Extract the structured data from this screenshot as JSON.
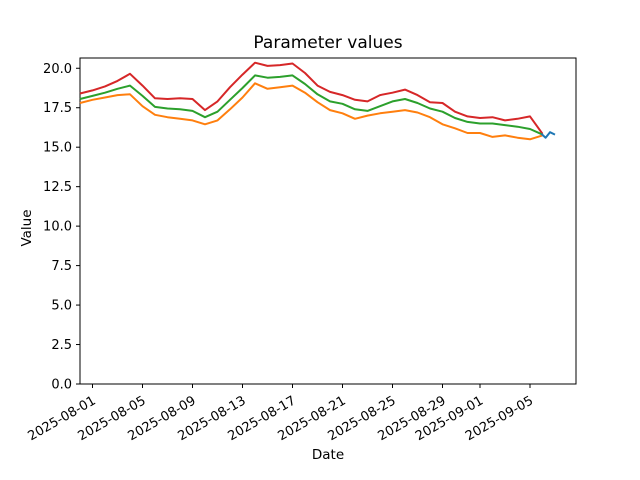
{
  "figure": {
    "title": "Parameter values",
    "xlabel": "Date",
    "ylabel": "Value",
    "background_color": "#ffffff",
    "spine_color": "#000000",
    "text_color": "#000000"
  },
  "chart_data": {
    "type": "line",
    "title": "Parameter values",
    "xlabel": "Date",
    "ylabel": "Value",
    "grid": false,
    "legend": null,
    "x_start": "2025-07-31",
    "xlim_days": [
      0,
      39.68
    ],
    "ylim": [
      0,
      20.65
    ],
    "y_ticks": [
      0.0,
      2.5,
      5.0,
      7.5,
      10.0,
      12.5,
      15.0,
      17.5,
      20.0
    ],
    "x_tick_dates": [
      "2025-08-01",
      "2025-08-05",
      "2025-08-09",
      "2025-08-13",
      "2025-08-17",
      "2025-08-21",
      "2025-08-25",
      "2025-08-29",
      "2025-09-01",
      "2025-09-05"
    ],
    "x_tick_rotation_deg": 30,
    "dates": [
      "2025-07-31",
      "2025-08-01",
      "2025-08-02",
      "2025-08-03",
      "2025-08-04",
      "2025-08-05",
      "2025-08-06",
      "2025-08-07",
      "2025-08-08",
      "2025-08-09",
      "2025-08-10",
      "2025-08-11",
      "2025-08-12",
      "2025-08-13",
      "2025-08-14",
      "2025-08-15",
      "2025-08-16",
      "2025-08-17",
      "2025-08-18",
      "2025-08-19",
      "2025-08-20",
      "2025-08-21",
      "2025-08-22",
      "2025-08-23",
      "2025-08-24",
      "2025-08-25",
      "2025-08-26",
      "2025-08-27",
      "2025-08-28",
      "2025-08-29",
      "2025-08-30",
      "2025-08-31",
      "2025-09-01",
      "2025-09-02",
      "2025-09-03",
      "2025-09-04",
      "2025-09-05",
      "2025-09-06"
    ],
    "series": [
      {
        "name": "series-red",
        "color": "#d62728",
        "values": [
          18.4,
          18.6,
          18.85,
          19.2,
          19.65,
          18.9,
          18.1,
          18.05,
          18.1,
          18.05,
          17.35,
          17.9,
          18.8,
          19.6,
          20.35,
          20.15,
          20.2,
          20.3,
          19.7,
          18.9,
          18.5,
          18.3,
          18.0,
          17.9,
          18.3,
          18.45,
          18.65,
          18.3,
          17.85,
          17.8,
          17.25,
          16.95,
          16.85,
          16.9,
          16.7,
          16.8,
          16.95,
          15.85
        ]
      },
      {
        "name": "series-green",
        "color": "#2ca02c",
        "values": [
          18.05,
          18.25,
          18.45,
          18.7,
          18.9,
          18.25,
          17.55,
          17.45,
          17.4,
          17.3,
          16.9,
          17.25,
          18.0,
          18.75,
          19.55,
          19.4,
          19.45,
          19.55,
          19.0,
          18.35,
          17.9,
          17.75,
          17.4,
          17.3,
          17.6,
          17.9,
          18.05,
          17.8,
          17.45,
          17.25,
          16.85,
          16.6,
          16.5,
          16.5,
          16.4,
          16.3,
          16.15,
          15.8
        ]
      },
      {
        "name": "series-orange",
        "color": "#ff7f0e",
        "values": [
          17.8,
          18.0,
          18.15,
          18.3,
          18.35,
          17.6,
          17.05,
          16.9,
          16.8,
          16.7,
          16.45,
          16.7,
          17.4,
          18.15,
          19.05,
          18.7,
          18.8,
          18.9,
          18.45,
          17.85,
          17.35,
          17.15,
          16.8,
          17.0,
          17.15,
          17.25,
          17.35,
          17.2,
          16.9,
          16.45,
          16.2,
          15.9,
          15.9,
          15.65,
          15.75,
          15.6,
          15.5,
          15.75
        ]
      },
      {
        "name": "series-blue",
        "color": "#1f77b4",
        "day_offsets": [
          36.9,
          37.25,
          37.6,
          38.0
        ],
        "values": [
          15.85,
          15.6,
          15.95,
          15.8
        ]
      }
    ]
  }
}
